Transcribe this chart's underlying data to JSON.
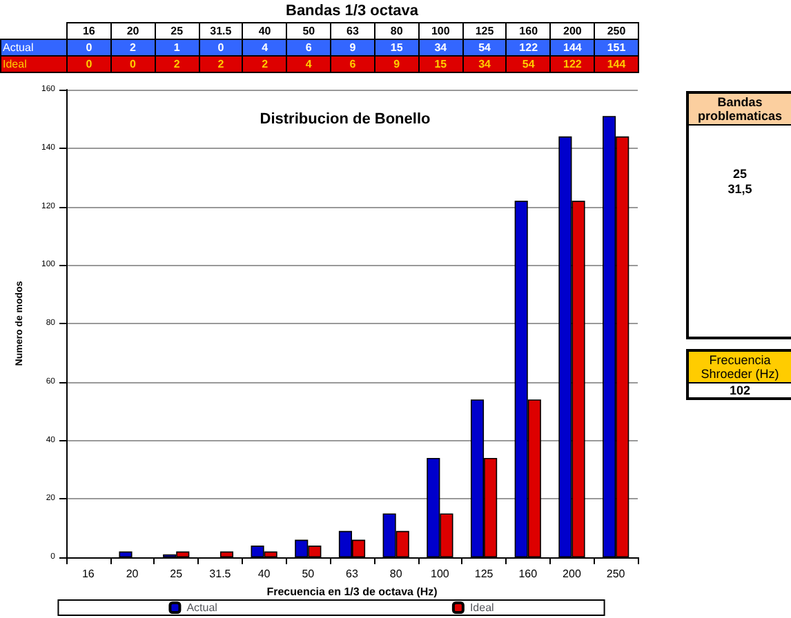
{
  "chart_data": {
    "type": "bar",
    "title": "Distribucion de Bonello",
    "xlabel": "Frecuencia en 1/3 de octava (Hz)",
    "ylabel": "Numero de modos",
    "categories": [
      "16",
      "20",
      "25",
      "31.5",
      "40",
      "50",
      "63",
      "80",
      "100",
      "125",
      "160",
      "200",
      "250"
    ],
    "series": [
      {
        "name": "Actual",
        "color": "#0000cc",
        "values": [
          0,
          2,
          1,
          0,
          4,
          6,
          9,
          15,
          34,
          54,
          122,
          144,
          151
        ]
      },
      {
        "name": "Ideal",
        "color": "#dd0000",
        "values": [
          0,
          0,
          2,
          2,
          2,
          4,
          6,
          9,
          15,
          34,
          54,
          122,
          144
        ]
      }
    ],
    "ylim": [
      0,
      160
    ],
    "yticks": [
      0,
      20,
      40,
      60,
      80,
      100,
      120,
      140,
      160
    ],
    "grid": "y",
    "legend": "bottom",
    "data_labels": true,
    "annotations": [
      "Bandas 1/3 octava",
      "Bandas problematicas",
      "25",
      "31,5",
      "Frecuencia Shroeder (Hz)",
      "102"
    ]
  }
}
